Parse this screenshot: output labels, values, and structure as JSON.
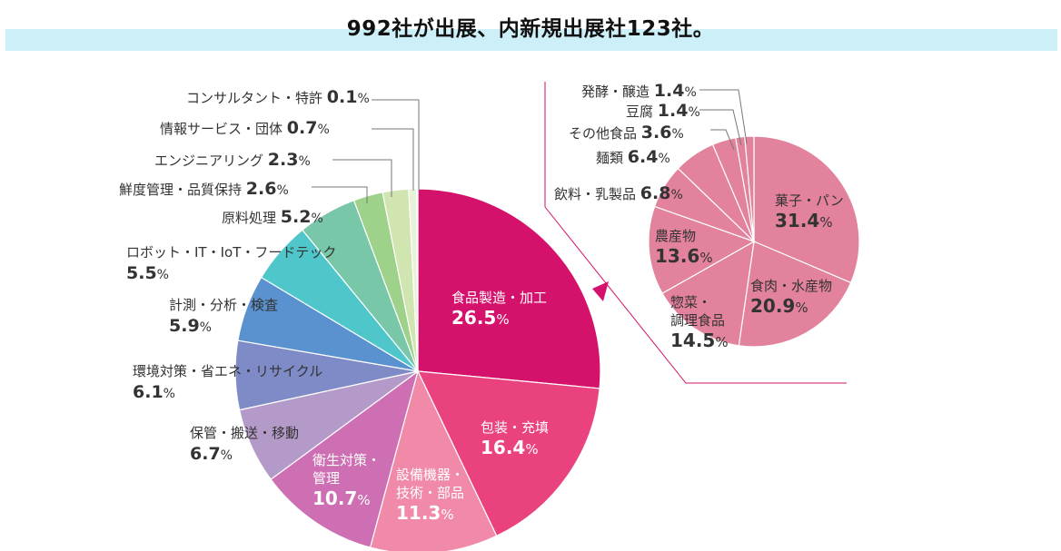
{
  "page": {
    "title": "992社が出展、内新規出展社123社。"
  },
  "chart_data": [
    {
      "type": "pie",
      "start": "12 o'clock, clockwise",
      "slices": [
        {
          "label": "食品製造・加工",
          "value": 26.5,
          "color": "#d5126b"
        },
        {
          "label": "包装・充填",
          "value": 16.4,
          "color": "#e9427f"
        },
        {
          "label": "設備機器・技術・部品",
          "value": 11.3,
          "color": "#f08aa8"
        },
        {
          "label": "衛生対策・管理",
          "value": 10.7,
          "color": "#cd6fb2"
        },
        {
          "label": "保管・搬送・移動",
          "value": 6.7,
          "color": "#b49ac9"
        },
        {
          "label": "環境対策・省エネ・リサイクル",
          "value": 6.1,
          "color": "#7e8bc6"
        },
        {
          "label": "計測・分析・検査",
          "value": 5.9,
          "color": "#5a92d0"
        },
        {
          "label": "ロボット・IT・IoT・フードテック",
          "value": 5.5,
          "color": "#4fc6c9"
        },
        {
          "label": "原料処理",
          "value": 5.2,
          "color": "#78c7a8"
        },
        {
          "label": "鮮度管理・品質保持",
          "value": 2.6,
          "color": "#9ed18a"
        },
        {
          "label": "エンジニアリング",
          "value": 2.3,
          "color": "#d1e5b1"
        },
        {
          "label": "情報サービス・団体",
          "value": 0.7,
          "color": "#e8f2d8"
        },
        {
          "label": "コンサルタント・特許",
          "value": 0.1,
          "color": "#f2f8ea"
        }
      ],
      "unit": "%"
    },
    {
      "type": "pie",
      "breakdown_of": "食品製造・加工",
      "start": "12 o'clock, clockwise",
      "color": "#e2829c",
      "slices": [
        {
          "label": "菓子・パン",
          "value": 31.4
        },
        {
          "label": "食肉・水産物",
          "value": 20.9
        },
        {
          "label": "惣菜・調理食品",
          "value": 14.5
        },
        {
          "label": "農産物",
          "value": 13.6
        },
        {
          "label": "飲料・乳製品",
          "value": 6.8
        },
        {
          "label": "麺類",
          "value": 6.4
        },
        {
          "label": "その他食品",
          "value": 3.6
        },
        {
          "label": "豆腐",
          "value": 1.4
        },
        {
          "label": "発酵・醸造",
          "value": 1.4
        }
      ],
      "unit": "%"
    }
  ]
}
